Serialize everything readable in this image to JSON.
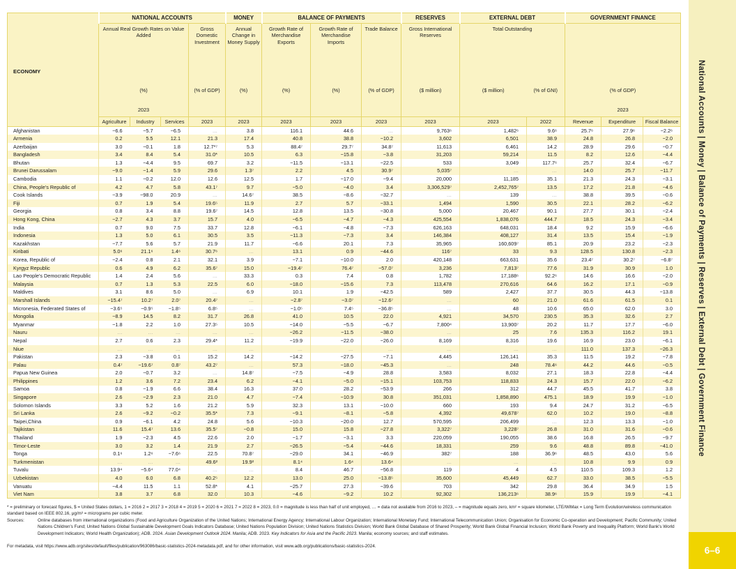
{
  "sidebar": {
    "nav_text": "National Accounts | Money | Balance of Payments | Reserves | External Debt | Government Finance",
    "page_label": "6–6",
    "bg_color": "#f6f0bf",
    "tab_color": "#f0d400"
  },
  "table": {
    "economy_label": "ECONOMY",
    "groups": {
      "national_accounts": "NATIONAL ACCOUNTS",
      "money": "MONEY",
      "bop": "BALANCE OF PAYMENTS",
      "reserves": "RESERVES",
      "external_debt": "EXTERNAL DEBT",
      "gov_finance": "GOVERNMENT FINANCE"
    },
    "subheads": {
      "growth_subtitle": "Annual Real Growth Rates on Value Added",
      "growth_unit": "(%)",
      "growth_year": "2023",
      "gdi_subtitle": "Gross Domestic Investment",
      "gdi_unit": "(% of GDP)",
      "money_subtitle": "Annual Change in Money Supply",
      "money_unit": "(%)",
      "exports_subtitle": "Growth Rate of Merchandise Exports",
      "exports_unit": "(%)",
      "imports_subtitle": "Growth Rate of Merchandise Imports",
      "imports_unit": "(%)",
      "trade_subtitle": "Trade Balance",
      "trade_unit": "(% of GDP)",
      "reserves_subtitle": "Gross International Reserves",
      "reserves_unit": "($ million)",
      "debt_subtitle": "Total Outstanding",
      "debt_unit_1": "($ million)",
      "debt_unit_2": "(% of GNI)",
      "gov_unit": "(% of GDP)",
      "gov_year": "2023"
    },
    "col_labels": [
      "Agriculture",
      "Industry",
      "Services",
      "2023",
      "2023",
      "2023",
      "2023",
      "2023",
      "2023",
      "2023",
      "2022",
      "Revenue",
      "Expenditure",
      "Fiscal Balance"
    ],
    "rows": [
      {
        "economy": "Afghanistan",
        "values": [
          "−6.6",
          "−5.7",
          "−6.5",
          "…",
          "3.8",
          "116.1",
          "44.6",
          "…",
          "9,763⁶",
          "1,482⁶",
          "9.6⁶",
          "25.7⁶",
          "27.9⁶",
          "−2.2⁶"
        ]
      },
      {
        "economy": "Armenia",
        "values": [
          "0.2",
          "5.5",
          "12.1",
          "21.3",
          "17.4",
          "40.8",
          "38.8",
          "−10.2",
          "3,602",
          "6,501",
          "38.9",
          "24.8",
          "26.8",
          "−2.0"
        ]
      },
      {
        "economy": "Azerbaijan",
        "values": [
          "3.0",
          "−0.1",
          "1.8",
          "12.7*⁷",
          "5.3",
          "88.4⁷",
          "29.7⁷",
          "34.8⁷",
          "11,613",
          "6,461",
          "14.2",
          "28.9",
          "29.6",
          "−0.7"
        ]
      },
      {
        "economy": "Bangladesh",
        "values": [
          "3.4",
          "8.4",
          "5.4",
          "31.0*",
          "10.5",
          "6.3",
          "−15.8",
          "−3.8",
          "31,203",
          "59,214",
          "11.5",
          "8.2",
          "12.6",
          "−4.4"
        ]
      },
      {
        "economy": "Bhutan",
        "values": [
          "1.3",
          "−4.4",
          "9.5",
          "69.7",
          "3.2",
          "−11.5",
          "−13.1",
          "−22.5",
          "533",
          "3,049",
          "117.7⁶",
          "25.7",
          "32.4",
          "−6.7"
        ]
      },
      {
        "economy": "Brunei Darussalam",
        "values": [
          "−9.0",
          "−1.4",
          "5.9",
          "29.6",
          "1.3⁷",
          "2.2",
          "4.5",
          "30.9⁷",
          "5,035⁷",
          "…",
          "…",
          "14.0",
          "25.7",
          "−11.7"
        ]
      },
      {
        "economy": "Cambodia",
        "values": [
          "1.1",
          "−0.2",
          "12.0",
          "12.6",
          "12.5",
          "1.7",
          "−17.0",
          "−9.4",
          "20,000",
          "11,185",
          "35.1",
          "21.3",
          "24.3",
          "−3.1"
        ]
      },
      {
        "economy": "China, People's Republic of",
        "values": [
          "4.2",
          "4.7",
          "5.8",
          "43.1⁷",
          "9.7",
          "−5.0",
          "−4.0",
          "3.4",
          "3,306,529⁷",
          "2,452,765⁷",
          "13.5",
          "17.2",
          "21.8",
          "−4.6"
        ]
      },
      {
        "economy": "Cook Islands",
        "values": [
          "−3.9",
          "−98.0",
          "20.9",
          "…",
          "14.6⁷",
          "38.5",
          "−8.6",
          "−32.7",
          "…",
          "139",
          "…",
          "38.8",
          "39.5",
          "−0.6"
        ]
      },
      {
        "economy": "Fiji",
        "values": [
          "0.7",
          "1.9",
          "5.4",
          "19.6⁵",
          "11.9",
          "2.7",
          "5.7",
          "−33.1",
          "1,494",
          "1,590",
          "30.5",
          "22.1",
          "28.2",
          "−6.2"
        ]
      },
      {
        "economy": "Georgia",
        "values": [
          "0.8",
          "3.4",
          "8.8",
          "19.6⁷",
          "14.5",
          "12.8",
          "13.5",
          "−30.8",
          "5,000",
          "20,467",
          "90.1",
          "27.7",
          "30.1",
          "−2.4"
        ]
      },
      {
        "economy": "Hong Kong, China",
        "values": [
          "−2.7",
          "4.3",
          "3.7",
          "15.7",
          "4.0",
          "−6.5",
          "−4.7",
          "−4.3",
          "425,554",
          "1,838,076",
          "444.7",
          "18.5",
          "24.3",
          "−3.4"
        ]
      },
      {
        "economy": "India",
        "values": [
          "0.7",
          "9.0",
          "7.5",
          "33.7",
          "12.8",
          "−6.1",
          "−4.8",
          "−7.3",
          "626,163",
          "648,031",
          "18.4",
          "9.2",
          "15.9",
          "−6.6"
        ]
      },
      {
        "economy": "Indonesia",
        "values": [
          "1.3",
          "5.0",
          "6.1",
          "30.5",
          "3.5",
          "−11.3",
          "−7.3",
          "3.4",
          "146,384",
          "408,127",
          "31.4",
          "13.5",
          "15.4",
          "−1.9"
        ]
      },
      {
        "economy": "Kazakhstan",
        "values": [
          "−7.7",
          "5.6",
          "5.7",
          "21.9",
          "11.7",
          "−6.6",
          "20.1",
          "7.3",
          "35,965",
          "160,609⁷",
          "85.1",
          "20.9",
          "23.2",
          "−2.3"
        ]
      },
      {
        "economy": "Kiribati",
        "values": [
          "5.0⁶",
          "21.1⁶",
          "1.4⁶",
          "30.7⁶",
          "…",
          "13.1",
          "0.9",
          "−44.6",
          "116⁷",
          "33",
          "9.3",
          "128.5",
          "130.8",
          "−2.3"
        ]
      },
      {
        "economy": "Korea, Republic of",
        "values": [
          "−2.4",
          "0.8",
          "2.1",
          "32.1",
          "3.9",
          "−7.1",
          "−10.0",
          "2.0",
          "420,148",
          "663,631",
          "35.6",
          "23.4⁷",
          "30.2⁷",
          "−6.8⁷"
        ]
      },
      {
        "economy": "Kyrgyz Republic",
        "values": [
          "0.6",
          "4.9",
          "6.2",
          "35.6⁷",
          "15.0",
          "−19.4⁷",
          "76.4⁷",
          "−57.0⁷",
          "3,236",
          "7,813⁷",
          "77.6",
          "31.9",
          "30.9",
          "1.0"
        ]
      },
      {
        "economy": "Lao People's Democratic Republic",
        "values": [
          "1.4",
          "2.4",
          "5.6",
          "…",
          "33.3",
          "0.3",
          "7.4",
          "0.8",
          "1,782",
          "17,188⁶",
          "92.2⁶",
          "14.6",
          "16.6",
          "−2.0"
        ]
      },
      {
        "economy": "Malaysia",
        "values": [
          "0.7",
          "1.3",
          "5.3",
          "22.5",
          "6.0",
          "−18.0",
          "−15.6",
          "7.3",
          "113,478",
          "270,616",
          "64.6",
          "16.2",
          "17.1",
          "−0.9"
        ]
      },
      {
        "economy": "Maldives",
        "values": [
          "3.1",
          "8.6",
          "5.0",
          "…",
          "6.9",
          "10.1",
          "1.9",
          "−42.5",
          "589",
          "2,427",
          "37.7",
          "30.5",
          "44.3",
          "−13.8"
        ]
      },
      {
        "economy": "Marshall Islands",
        "values": [
          "−15.4⁷",
          "10.2⁷",
          "2.0⁷",
          "20.4⁷",
          "…",
          "−2.8⁷",
          "−3.0⁷",
          "−12.6⁷",
          "…",
          "60",
          "21.0",
          "61.6",
          "61.5",
          "0.1"
        ]
      },
      {
        "economy": "Micronesia, Federated States of",
        "values": [
          "−3.6⁵",
          "−0.9⁵",
          "−1.8⁵",
          "6.8⁵",
          "…",
          "−1.0⁵",
          "7.4⁵",
          "−36.8⁵",
          "…",
          "48",
          "10.6",
          "65.0",
          "62.0",
          "3.0"
        ]
      },
      {
        "economy": "Mongolia",
        "values": [
          "−8.9",
          "14.5",
          "8.2",
          "31.7",
          "26.8",
          "41.0",
          "10.5",
          "22.0",
          "4,921",
          "34,570",
          "230.5",
          "35.3",
          "32.6",
          "2.7"
        ]
      },
      {
        "economy": "Myanmar",
        "values": [
          "−1.8",
          "2.2",
          "1.0",
          "27.3⁵",
          "10.5",
          "−14.0",
          "−5.5",
          "−6.7",
          "7,800⁴",
          "13,900⁷",
          "20.2",
          "11.7",
          "17.7",
          "−6.0"
        ]
      },
      {
        "economy": "Nauru",
        "values": [
          "…",
          "…",
          "…",
          "…",
          "…",
          "−26.2",
          "−11.5",
          "−38.0",
          "…",
          "25",
          "7.6",
          "135.3",
          "116.2",
          "19.1"
        ]
      },
      {
        "economy": "Nepal",
        "values": [
          "2.7",
          "0.6",
          "2.3",
          "29.4*",
          "11.2",
          "−19.9",
          "−22.0",
          "−26.0",
          "8,169",
          "8,316",
          "19.6",
          "16.9",
          "23.0",
          "−6.1"
        ]
      },
      {
        "economy": "Niue",
        "values": [
          "…",
          "…",
          "…",
          "…",
          "…",
          "…",
          "…",
          "…",
          "…",
          "…",
          "…",
          "111.0",
          "137.3",
          "−26.3"
        ]
      },
      {
        "economy": "Pakistan",
        "values": [
          "2.3",
          "−3.8",
          "0.1",
          "15.2",
          "14.2",
          "−14.2",
          "−27.5",
          "−7.1",
          "4,445",
          "126,141",
          "35.3",
          "11.5",
          "19.2",
          "−7.8"
        ]
      },
      {
        "economy": "Palau",
        "values": [
          "0.4⁷",
          "−19.6⁷",
          "0.8⁷",
          "43.2⁷",
          "…",
          "57.3",
          "−18.0",
          "−45.3",
          "…",
          "248",
          "78.4⁶",
          "44.2",
          "44.6",
          "−0.5"
        ]
      },
      {
        "economy": "Papua New Guinea",
        "values": [
          "2.0",
          "−0.7",
          "3.2",
          "…",
          "14.8⁷",
          "−7.5",
          "−4.9",
          "28.8",
          "3,583",
          "8,032",
          "27.1",
          "18.3",
          "22.8",
          "−4.4"
        ]
      },
      {
        "economy": "Philippines",
        "values": [
          "1.2",
          "3.6",
          "7.2",
          "23.4",
          "6.2",
          "−4.1",
          "−5.0",
          "−15.1",
          "103,753",
          "118,833",
          "24.3",
          "15.7",
          "22.0",
          "−6.2"
        ]
      },
      {
        "economy": "Samoa",
        "values": [
          "0.8",
          "−1.9",
          "6.6",
          "38.4",
          "16.3",
          "37.0",
          "28.2",
          "−53.9",
          "266",
          "312",
          "44.7",
          "45.5",
          "41.7",
          "3.8"
        ]
      },
      {
        "economy": "Singapore",
        "values": [
          "2.6",
          "−2.9",
          "2.3",
          "21.0",
          "4.7",
          "−7.4",
          "−10.9",
          "30.8",
          "351,031",
          "1,858,890",
          "475.1",
          "18.9",
          "19.9",
          "−1.0"
        ]
      },
      {
        "economy": "Solomon Islands",
        "values": [
          "3.3",
          "5.2",
          "1.6",
          "21.2",
          "5.9",
          "32.3",
          "13.1",
          "−10.0",
          "660",
          "193",
          "9.4",
          "24.7",
          "31.2",
          "−6.5"
        ]
      },
      {
        "economy": "Sri Lanka",
        "values": [
          "2.6",
          "−9.2",
          "−0.2",
          "35.5*",
          "7.3",
          "−9.1",
          "−8.1",
          "−5.8",
          "4,392",
          "49,678⁷",
          "62.0",
          "10.2",
          "19.0",
          "−8.8"
        ]
      },
      {
        "economy": "Taipei,China",
        "values": [
          "0.9",
          "−6.1",
          "4.2",
          "24.8",
          "5.6",
          "−10.3",
          "−20.0",
          "12.7",
          "570,595",
          "206,499",
          "…",
          "12.3",
          "13.3",
          "−1.0"
        ]
      },
      {
        "economy": "Tajikistan",
        "values": [
          "11.6",
          "15.4⁷",
          "13.6",
          "35.5⁷",
          "−0.8",
          "15.0",
          "15.8",
          "−27.8",
          "3,322⁷",
          "3,228⁷",
          "26.8",
          "31.0",
          "31.6",
          "−0.6"
        ]
      },
      {
        "economy": "Thailand",
        "values": [
          "1.9",
          "−2.3",
          "4.5",
          "22.6",
          "2.0",
          "−1.7",
          "−3.1",
          "3.3",
          "220,059",
          "190,055",
          "38.6",
          "16.8",
          "26.5",
          "−9.7"
        ]
      },
      {
        "economy": "Timor-Leste",
        "values": [
          "3.0",
          "3.2",
          "1.4",
          "21.9",
          "2.7",
          "−26.5",
          "−5.4",
          "−44.6",
          "18,331",
          "259",
          "9.6",
          "48.8",
          "89.8",
          "−41.0"
        ]
      },
      {
        "economy": "Tonga",
        "values": [
          "0.1⁶",
          "1.2⁶",
          "−7.6⁶",
          "22.5",
          "70.8⁷",
          "−29.0",
          "34.1",
          "−46.9",
          "382⁷",
          "188",
          "36.9⁶",
          "48.5",
          "43.0",
          "5.6"
        ]
      },
      {
        "economy": "Turkmenistan",
        "values": [
          "…",
          "…",
          "…",
          "49.6²",
          "19.9²",
          "8.1⁴",
          "1.6⁴",
          "13.6⁴",
          "…",
          "…",
          "…",
          "10.8",
          "9.9",
          "0.9"
        ]
      },
      {
        "economy": "Tuvalu",
        "values": [
          "13.9⁴",
          "−5.6⁴",
          "77.0⁴",
          "…",
          "…",
          "8.4",
          "46.7",
          "−56.8",
          "119",
          "4",
          "4.5",
          "110.5",
          "109.3",
          "1.2"
        ]
      },
      {
        "economy": "Uzbekistan",
        "values": [
          "4.0",
          "6.0",
          "6.8",
          "40.2⁵",
          "12.2",
          "13.0",
          "25.0",
          "−13.8⁵",
          "35,600",
          "45,449",
          "62.7",
          "33.0",
          "38.5",
          "−5.5"
        ]
      },
      {
        "economy": "Vanuatu",
        "values": [
          "−4.4",
          "11.5",
          "1.1",
          "52.8*",
          "4.1",
          "−25.7",
          "27.3",
          "−39.6",
          "703",
          "342",
          "29.8",
          "36.4",
          "34.9",
          "1.5"
        ]
      },
      {
        "economy": "Viet Nam",
        "values": [
          "3.8",
          "3.7",
          "6.8",
          "32.0",
          "10.3",
          "−4.6",
          "−9.2",
          "10.2",
          "92,302",
          "136,213⁶",
          "38.9⁶",
          "15.9",
          "19.9",
          "−4.1"
        ]
      }
    ]
  },
  "footnotes": {
    "legend": "* = preliminary or forecast figures, $ = United States dollars, 1 = 2016   2 = 2017   3 = 2018   4 = 2019   5 = 2020   6 = 2021   7 = 2022   8 = 2023, 0.0 = magnitude is less than half of unit employed, … = data not available from 2016 to 2023, – = magnitude equals zero, km² = square kilometer, LTE/WiMax = Long Term Evolution/wireless communication standard based on IEEE 802.16, μg/m³ = micrograms per cubic meter.",
    "sources_label": "Sources:",
    "sources_p1": "Online databases from international organizations (Food and Agriculture Organization of the United Nations; International Energy Agency; International Labour Organization; International Monetary Fund; International Telecommunication Union; Organisation for Economic Co-operation and Development; Pacific Community; United Nations Children's Fund; United Nations Global Sustainable Development Goals Indicators Database; United Nations Population Division; United Nations Statistics Division; World Bank Global Database of Shared Prosperity; World Bank Global Financial Inclusion; World Bank Poverty and Inequality Platform; World Bank's World Development Indicators; World Health Organization); ADB. 2024. ",
    "sources_i1": "Asian Development Outlook 2024",
    "sources_p2": ". Manila; ADB. 2023. ",
    "sources_i2": "Key Indicators for Asia and the Pacific 2023",
    "sources_p3": ". Manila; economy sources; and staff estimates.",
    "metadata_line": "For metadata, visit https://www.adb.org/sites/default/files/publication/963086/basic-statistics-2024-metadata.pdf, and for other information, visit www.adb.org/publications/basic-statistics-2024."
  }
}
